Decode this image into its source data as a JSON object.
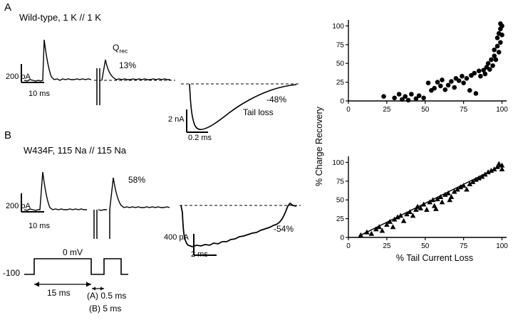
{
  "panel_a": {
    "letter": "A",
    "title": "Wild-type, 1 K // 1 K",
    "qrec_symbol": "Q",
    "qrec_subscript": "rec",
    "qrec_value": "13%",
    "scale_vertical": "200 pA",
    "scale_horizontal": "10 ms",
    "tail": {
      "loss_value": "-48%",
      "loss_label": "Tail loss",
      "scale_vertical": "2 nA",
      "scale_horizontal": "0.2 ms"
    }
  },
  "panel_b": {
    "letter": "B",
    "title": "W434F, 115 Na // 115 Na",
    "qrec_value": "58%",
    "scale_vertical": "200 pA",
    "scale_horizontal": "10 ms",
    "tail": {
      "loss_value": "-54%",
      "scale_vertical": "400 pA",
      "scale_horizontal": "2 ms"
    }
  },
  "protocol": {
    "pulse_level": "0 mV",
    "holding_level": "-100",
    "pulse_duration": "15 ms",
    "interpulse_a": "(A) 0.5 ms",
    "interpulse_b": "(B) 5 ms"
  },
  "chart_data": [
    {
      "type": "scatter",
      "marker": "circle",
      "title": "",
      "ylabel": "% Charge Recovery",
      "xlabel": "",
      "xlim": [
        0,
        103
      ],
      "ylim": [
        0,
        108
      ],
      "xticks": [
        0,
        25,
        50,
        75,
        100
      ],
      "yticks": [
        0,
        25,
        50,
        75,
        100
      ],
      "grid": false,
      "points": [
        [
          23,
          6
        ],
        [
          30,
          4
        ],
        [
          33,
          9
        ],
        [
          35,
          2
        ],
        [
          37,
          6
        ],
        [
          39,
          1
        ],
        [
          41,
          9
        ],
        [
          44,
          3
        ],
        [
          46,
          7
        ],
        [
          49,
          4
        ],
        [
          52,
          24
        ],
        [
          54,
          14
        ],
        [
          56,
          17
        ],
        [
          58,
          25
        ],
        [
          60,
          20
        ],
        [
          61,
          28
        ],
        [
          63,
          15
        ],
        [
          65,
          21
        ],
        [
          67,
          26
        ],
        [
          69,
          18
        ],
        [
          70,
          30
        ],
        [
          72,
          27
        ],
        [
          74,
          33
        ],
        [
          75,
          24
        ],
        [
          77,
          30
        ],
        [
          79,
          14
        ],
        [
          80,
          34
        ],
        [
          82,
          37
        ],
        [
          83,
          10
        ],
        [
          85,
          40
        ],
        [
          86,
          33
        ],
        [
          88,
          41
        ],
        [
          89,
          36
        ],
        [
          90,
          45
        ],
        [
          91,
          50
        ],
        [
          92,
          42
        ],
        [
          93,
          55
        ],
        [
          94,
          47
        ],
        [
          95,
          60
        ],
        [
          95,
          68
        ],
        [
          96,
          55
        ],
        [
          97,
          73
        ],
        [
          97,
          84
        ],
        [
          98,
          65
        ],
        [
          98,
          90
        ],
        [
          99,
          78
        ],
        [
          99,
          96
        ],
        [
          100,
          100
        ],
        [
          100,
          88
        ],
        [
          99,
          103
        ]
      ]
    },
    {
      "type": "scatter",
      "marker": "triangle",
      "title": "",
      "ylabel": "% Charge Recovery",
      "xlabel": "% Tail Current Loss",
      "xlim": [
        0,
        103
      ],
      "ylim": [
        0,
        108
      ],
      "xticks": [
        0,
        25,
        50,
        75,
        100
      ],
      "yticks": [
        0,
        25,
        50,
        75,
        100
      ],
      "grid": false,
      "fit_line": [
        [
          7,
          2
        ],
        [
          100,
          96
        ]
      ],
      "points": [
        [
          8,
          3
        ],
        [
          12,
          7
        ],
        [
          15,
          5
        ],
        [
          18,
          11
        ],
        [
          20,
          14
        ],
        [
          22,
          9
        ],
        [
          25,
          17
        ],
        [
          27,
          21
        ],
        [
          29,
          14
        ],
        [
          30,
          24
        ],
        [
          32,
          27
        ],
        [
          34,
          29
        ],
        [
          36,
          22
        ],
        [
          38,
          31
        ],
        [
          40,
          34
        ],
        [
          42,
          29
        ],
        [
          44,
          37
        ],
        [
          45,
          41
        ],
        [
          47,
          39
        ],
        [
          49,
          44
        ],
        [
          51,
          37
        ],
        [
          53,
          47
        ],
        [
          55,
          50
        ],
        [
          56,
          42
        ],
        [
          57,
          38
        ],
        [
          58,
          51
        ],
        [
          60,
          54
        ],
        [
          61,
          47
        ],
        [
          63,
          57
        ],
        [
          65,
          59
        ],
        [
          66,
          50
        ],
        [
          67,
          54
        ],
        [
          69,
          61
        ],
        [
          71,
          64
        ],
        [
          73,
          67
        ],
        [
          75,
          69
        ],
        [
          77,
          64
        ],
        [
          79,
          71
        ],
        [
          81,
          74
        ],
        [
          83,
          77
        ],
        [
          85,
          79
        ],
        [
          87,
          81
        ],
        [
          89,
          84
        ],
        [
          91,
          87
        ],
        [
          93,
          89
        ],
        [
          95,
          91
        ],
        [
          97,
          94
        ],
        [
          98,
          98
        ],
        [
          100,
          96
        ],
        [
          100,
          91
        ]
      ]
    }
  ]
}
